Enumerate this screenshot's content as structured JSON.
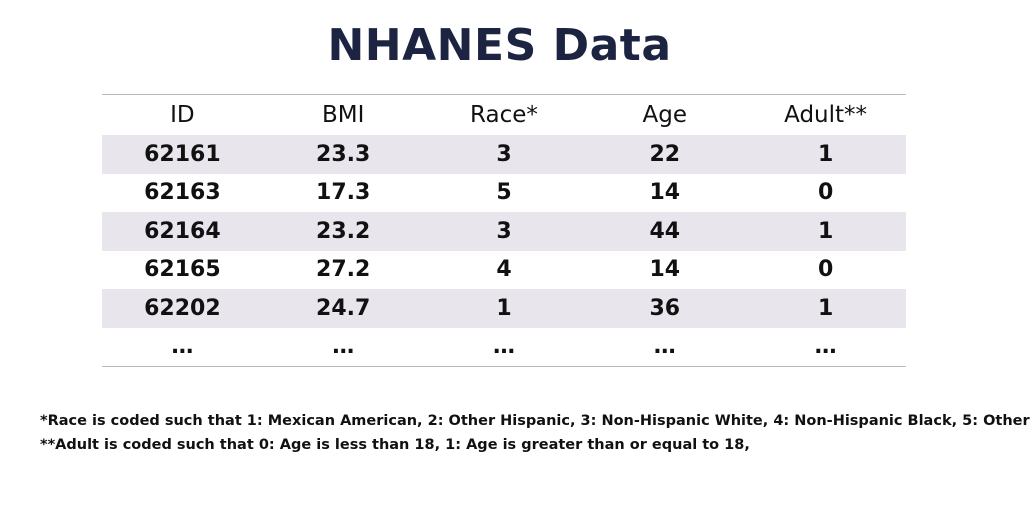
{
  "slide": {
    "title": "NHANES Data"
  },
  "table": {
    "columns": [
      "ID",
      "BMI",
      "Race*",
      "Age",
      "Adult**"
    ],
    "rows": [
      [
        "62161",
        "23.3",
        "3",
        "22",
        "1"
      ],
      [
        "62163",
        "17.3",
        "5",
        "14",
        "0"
      ],
      [
        "62164",
        "23.2",
        "3",
        "44",
        "1"
      ],
      [
        "62165",
        "27.2",
        "4",
        "14",
        "0"
      ],
      [
        "62202",
        "24.7",
        "1",
        "36",
        "1"
      ],
      [
        "…",
        "…",
        "…",
        "…",
        "…"
      ]
    ]
  },
  "notes": {
    "race": "*Race is coded such that 1: Mexican American, 2: Other Hispanic, 3: Non-Hispanic White, 4: Non-Hispanic Black, 5: Other",
    "adult": "**Adult is coded such that 0: Age is less than 18, 1: Age is greater than or equal to 18,"
  }
}
